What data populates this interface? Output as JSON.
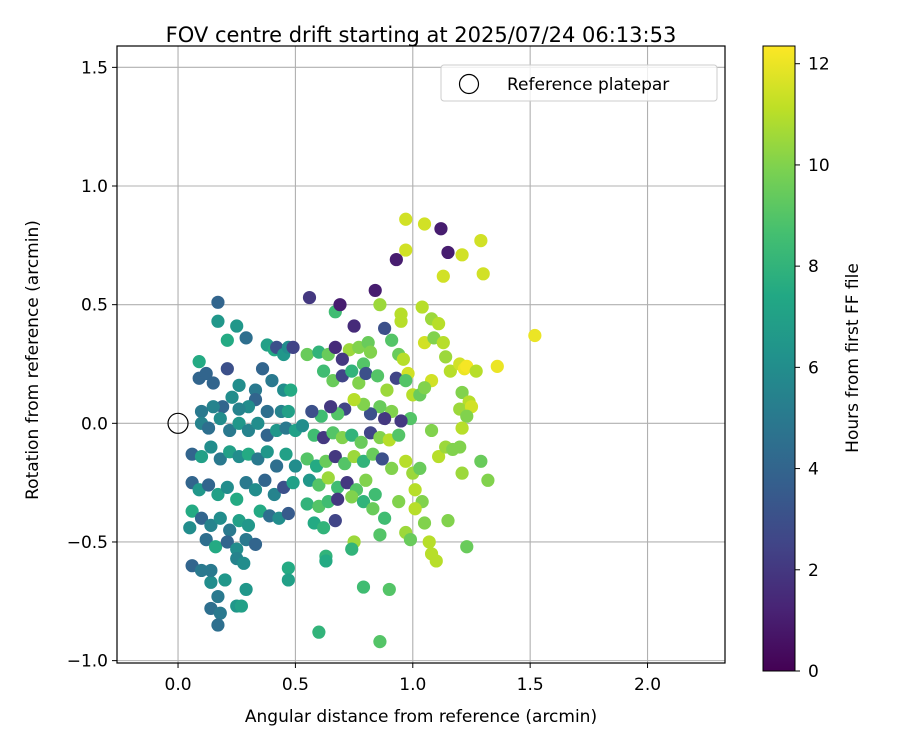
{
  "chart_data": {
    "type": "scatter",
    "title": "FOV centre drift starting at 2025/07/24 06:13:53",
    "xlabel": "Angular distance from reference (arcmin)",
    "ylabel": "Rotation from reference (arcmin)",
    "xlim": [
      -0.26,
      2.33
    ],
    "ylim": [
      -1.01,
      1.59
    ],
    "xticks": [
      0.0,
      0.5,
      1.0,
      1.5,
      2.0
    ],
    "xtick_labels": [
      "0.0",
      "0.5",
      "1.0",
      "1.5",
      "2.0"
    ],
    "yticks": [
      -1.0,
      -0.5,
      0.0,
      0.5,
      1.0,
      1.5
    ],
    "ytick_labels": [
      "−1.0",
      "−0.5",
      "0.0",
      "0.5",
      "1.0",
      "1.5"
    ],
    "grid": true,
    "legend": {
      "position": "top-right",
      "entries": [
        "Reference platepar"
      ]
    },
    "reference_point": {
      "x": 0.0,
      "y": 0.0
    },
    "colorbar": {
      "label": "Hours from first FF file",
      "range": [
        0,
        12.35
      ],
      "ticks": [
        0,
        2,
        4,
        6,
        8,
        10,
        12
      ],
      "tick_labels": [
        "0",
        "2",
        "4",
        "6",
        "8",
        "10",
        "12"
      ],
      "colormap": "viridis"
    },
    "points": [
      {
        "x": 0.17,
        "y": 0.51,
        "c": 4
      },
      {
        "x": 0.17,
        "y": 0.43,
        "c": 6.5
      },
      {
        "x": 0.25,
        "y": 0.41,
        "c": 6.5
      },
      {
        "x": 0.21,
        "y": 0.35,
        "c": 7.5
      },
      {
        "x": 0.29,
        "y": 0.36,
        "c": 4.5
      },
      {
        "x": 0.09,
        "y": 0.26,
        "c": 7.5
      },
      {
        "x": 0.09,
        "y": 0.19,
        "c": 4
      },
      {
        "x": 0.12,
        "y": 0.21,
        "c": 4
      },
      {
        "x": 0.15,
        "y": 0.17,
        "c": 4
      },
      {
        "x": 0.21,
        "y": 0.23,
        "c": 3
      },
      {
        "x": 0.26,
        "y": 0.16,
        "c": 6
      },
      {
        "x": 0.33,
        "y": 0.14,
        "c": 5
      },
      {
        "x": 0.36,
        "y": 0.23,
        "c": 4
      },
      {
        "x": 0.38,
        "y": 0.33,
        "c": 7
      },
      {
        "x": 0.41,
        "y": 0.31,
        "c": 7.5
      },
      {
        "x": 0.42,
        "y": 0.32,
        "c": 3
      },
      {
        "x": 0.45,
        "y": 0.29,
        "c": 6.5
      },
      {
        "x": 0.47,
        "y": 0.32,
        "c": 6
      },
      {
        "x": 0.49,
        "y": 0.32,
        "c": 2.5
      },
      {
        "x": 0.4,
        "y": 0.18,
        "c": 5
      },
      {
        "x": 0.45,
        "y": 0.14,
        "c": 6
      },
      {
        "x": 0.48,
        "y": 0.14,
        "c": 7.5
      },
      {
        "x": 0.44,
        "y": 0.05,
        "c": 5.5
      },
      {
        "x": 0.47,
        "y": 0.05,
        "c": 7
      },
      {
        "x": 0.38,
        "y": 0.05,
        "c": 4.5
      },
      {
        "x": 0.33,
        "y": 0.1,
        "c": 4
      },
      {
        "x": 0.3,
        "y": 0.07,
        "c": 6
      },
      {
        "x": 0.26,
        "y": 0.06,
        "c": 5.5
      },
      {
        "x": 0.23,
        "y": 0.11,
        "c": 6
      },
      {
        "x": 0.19,
        "y": 0.07,
        "c": 4
      },
      {
        "x": 0.15,
        "y": 0.07,
        "c": 5.5
      },
      {
        "x": 0.1,
        "y": 0.05,
        "c": 5
      },
      {
        "x": 0.1,
        "y": 0.0,
        "c": 5.5
      },
      {
        "x": 0.13,
        "y": -0.02,
        "c": 4.5
      },
      {
        "x": 0.18,
        "y": 0.02,
        "c": 6
      },
      {
        "x": 0.22,
        "y": -0.03,
        "c": 5
      },
      {
        "x": 0.26,
        "y": 0.0,
        "c": 6.5
      },
      {
        "x": 0.3,
        "y": -0.03,
        "c": 5.5
      },
      {
        "x": 0.34,
        "y": 0.0,
        "c": 6
      },
      {
        "x": 0.38,
        "y": -0.05,
        "c": 4
      },
      {
        "x": 0.42,
        "y": -0.03,
        "c": 6.5
      },
      {
        "x": 0.46,
        "y": -0.02,
        "c": 5
      },
      {
        "x": 0.5,
        "y": -0.03,
        "c": 7
      },
      {
        "x": 0.53,
        "y": -0.01,
        "c": 6
      },
      {
        "x": 0.06,
        "y": -0.13,
        "c": 4
      },
      {
        "x": 0.1,
        "y": -0.14,
        "c": 7
      },
      {
        "x": 0.14,
        "y": -0.1,
        "c": 6
      },
      {
        "x": 0.18,
        "y": -0.15,
        "c": 5
      },
      {
        "x": 0.22,
        "y": -0.12,
        "c": 7
      },
      {
        "x": 0.26,
        "y": -0.14,
        "c": 6
      },
      {
        "x": 0.3,
        "y": -0.13,
        "c": 7.5
      },
      {
        "x": 0.34,
        "y": -0.15,
        "c": 5
      },
      {
        "x": 0.38,
        "y": -0.12,
        "c": 6.5
      },
      {
        "x": 0.42,
        "y": -0.18,
        "c": 4.5
      },
      {
        "x": 0.46,
        "y": -0.13,
        "c": 7
      },
      {
        "x": 0.5,
        "y": -0.18,
        "c": 6
      },
      {
        "x": 0.06,
        "y": -0.25,
        "c": 4
      },
      {
        "x": 0.09,
        "y": -0.28,
        "c": 6.5
      },
      {
        "x": 0.13,
        "y": -0.26,
        "c": 4
      },
      {
        "x": 0.17,
        "y": -0.3,
        "c": 7
      },
      {
        "x": 0.21,
        "y": -0.27,
        "c": 6
      },
      {
        "x": 0.25,
        "y": -0.32,
        "c": 7.5
      },
      {
        "x": 0.29,
        "y": -0.25,
        "c": 5
      },
      {
        "x": 0.33,
        "y": -0.28,
        "c": 6
      },
      {
        "x": 0.37,
        "y": -0.24,
        "c": 4
      },
      {
        "x": 0.41,
        "y": -0.3,
        "c": 5.5
      },
      {
        "x": 0.45,
        "y": -0.27,
        "c": 3
      },
      {
        "x": 0.49,
        "y": -0.25,
        "c": 7
      },
      {
        "x": 0.06,
        "y": -0.37,
        "c": 7.5
      },
      {
        "x": 0.1,
        "y": -0.4,
        "c": 4
      },
      {
        "x": 0.14,
        "y": -0.43,
        "c": 5.5
      },
      {
        "x": 0.18,
        "y": -0.4,
        "c": 6
      },
      {
        "x": 0.22,
        "y": -0.45,
        "c": 5
      },
      {
        "x": 0.26,
        "y": -0.41,
        "c": 7
      },
      {
        "x": 0.3,
        "y": -0.43,
        "c": 6.5
      },
      {
        "x": 0.35,
        "y": -0.37,
        "c": 7.5
      },
      {
        "x": 0.39,
        "y": -0.39,
        "c": 4.5
      },
      {
        "x": 0.43,
        "y": -0.4,
        "c": 6
      },
      {
        "x": 0.47,
        "y": -0.38,
        "c": 3.5
      },
      {
        "x": 0.05,
        "y": -0.44,
        "c": 6
      },
      {
        "x": 0.12,
        "y": -0.49,
        "c": 4.5
      },
      {
        "x": 0.16,
        "y": -0.52,
        "c": 7.5
      },
      {
        "x": 0.21,
        "y": -0.5,
        "c": 4
      },
      {
        "x": 0.25,
        "y": -0.53,
        "c": 6
      },
      {
        "x": 0.29,
        "y": -0.49,
        "c": 5
      },
      {
        "x": 0.33,
        "y": -0.51,
        "c": 4
      },
      {
        "x": 0.06,
        "y": -0.6,
        "c": 4
      },
      {
        "x": 0.1,
        "y": -0.62,
        "c": 5
      },
      {
        "x": 0.14,
        "y": -0.67,
        "c": 6
      },
      {
        "x": 0.2,
        "y": -0.66,
        "c": 6.5
      },
      {
        "x": 0.25,
        "y": -0.57,
        "c": 5.5
      },
      {
        "x": 0.28,
        "y": -0.59,
        "c": 6
      },
      {
        "x": 0.14,
        "y": -0.62,
        "c": 5
      },
      {
        "x": 0.17,
        "y": -0.73,
        "c": 5
      },
      {
        "x": 0.14,
        "y": -0.78,
        "c": 4.5
      },
      {
        "x": 0.18,
        "y": -0.8,
        "c": 5
      },
      {
        "x": 0.17,
        "y": -0.85,
        "c": 4.5
      },
      {
        "x": 0.25,
        "y": -0.77,
        "c": 6.5
      },
      {
        "x": 0.27,
        "y": -0.77,
        "c": 7
      },
      {
        "x": 0.29,
        "y": -0.7,
        "c": 6.5
      },
      {
        "x": 0.47,
        "y": -0.61,
        "c": 7.5
      },
      {
        "x": 0.47,
        "y": -0.66,
        "c": 7
      },
      {
        "x": 0.56,
        "y": 0.53,
        "c": 2
      },
      {
        "x": 0.55,
        "y": 0.29,
        "c": 9.5
      },
      {
        "x": 0.6,
        "y": 0.3,
        "c": 8
      },
      {
        "x": 0.64,
        "y": 0.29,
        "c": 9.5
      },
      {
        "x": 0.67,
        "y": 0.47,
        "c": 8.5
      },
      {
        "x": 0.69,
        "y": 0.5,
        "c": 1
      },
      {
        "x": 0.75,
        "y": 0.41,
        "c": 1.5
      },
      {
        "x": 0.73,
        "y": 0.31,
        "c": 10.5
      },
      {
        "x": 0.77,
        "y": 0.32,
        "c": 10
      },
      {
        "x": 0.81,
        "y": 0.34,
        "c": 9.5
      },
      {
        "x": 0.84,
        "y": 0.56,
        "c": 1
      },
      {
        "x": 0.86,
        "y": 0.5,
        "c": 10.5
      },
      {
        "x": 0.88,
        "y": 0.4,
        "c": 3
      },
      {
        "x": 0.82,
        "y": 0.3,
        "c": 10
      },
      {
        "x": 0.79,
        "y": 0.25,
        "c": 9
      },
      {
        "x": 0.7,
        "y": 0.27,
        "c": 2
      },
      {
        "x": 0.67,
        "y": 0.32,
        "c": 1.5
      },
      {
        "x": 0.62,
        "y": 0.22,
        "c": 8.5
      },
      {
        "x": 0.66,
        "y": 0.18,
        "c": 9.5
      },
      {
        "x": 0.7,
        "y": 0.2,
        "c": 2.5
      },
      {
        "x": 0.74,
        "y": 0.22,
        "c": 8
      },
      {
        "x": 0.77,
        "y": 0.17,
        "c": 10
      },
      {
        "x": 0.8,
        "y": 0.21,
        "c": 3
      },
      {
        "x": 0.85,
        "y": 0.2,
        "c": 9
      },
      {
        "x": 0.89,
        "y": 0.14,
        "c": 10.5
      },
      {
        "x": 0.93,
        "y": 0.19,
        "c": 2.5
      },
      {
        "x": 0.91,
        "y": 0.35,
        "c": 9
      },
      {
        "x": 0.95,
        "y": 0.46,
        "c": 11
      },
      {
        "x": 0.95,
        "y": 0.43,
        "c": 11
      },
      {
        "x": 0.94,
        "y": 0.29,
        "c": 9.5
      },
      {
        "x": 0.96,
        "y": 0.27,
        "c": 11
      },
      {
        "x": 0.98,
        "y": 0.21,
        "c": 11.5
      },
      {
        "x": 0.97,
        "y": 0.18,
        "c": 9
      },
      {
        "x": 1.0,
        "y": 0.12,
        "c": 11
      },
      {
        "x": 1.03,
        "y": 0.12,
        "c": 9.5
      },
      {
        "x": 0.99,
        "y": 0.02,
        "c": 9
      },
      {
        "x": 0.95,
        "y": 0.01,
        "c": 2
      },
      {
        "x": 0.91,
        "y": 0.05,
        "c": 10
      },
      {
        "x": 0.88,
        "y": 0.02,
        "c": 2
      },
      {
        "x": 0.86,
        "y": 0.07,
        "c": 9.5
      },
      {
        "x": 0.82,
        "y": 0.04,
        "c": 3
      },
      {
        "x": 0.79,
        "y": 0.08,
        "c": 10
      },
      {
        "x": 0.75,
        "y": 0.1,
        "c": 11
      },
      {
        "x": 0.71,
        "y": 0.06,
        "c": 2.5
      },
      {
        "x": 0.68,
        "y": 0.04,
        "c": 9
      },
      {
        "x": 0.65,
        "y": 0.07,
        "c": 2
      },
      {
        "x": 0.61,
        "y": 0.03,
        "c": 8.5
      },
      {
        "x": 0.57,
        "y": 0.05,
        "c": 3
      },
      {
        "x": 0.58,
        "y": -0.05,
        "c": 8.5
      },
      {
        "x": 0.62,
        "y": -0.06,
        "c": 2
      },
      {
        "x": 0.66,
        "y": -0.04,
        "c": 9
      },
      {
        "x": 0.7,
        "y": -0.06,
        "c": 10
      },
      {
        "x": 0.74,
        "y": -0.05,
        "c": 8
      },
      {
        "x": 0.78,
        "y": -0.08,
        "c": 9.5
      },
      {
        "x": 0.82,
        "y": -0.04,
        "c": 2.5
      },
      {
        "x": 0.86,
        "y": -0.06,
        "c": 10
      },
      {
        "x": 0.9,
        "y": -0.07,
        "c": 11
      },
      {
        "x": 0.94,
        "y": -0.05,
        "c": 9
      },
      {
        "x": 0.55,
        "y": -0.15,
        "c": 9
      },
      {
        "x": 0.59,
        "y": -0.18,
        "c": 7.5
      },
      {
        "x": 0.63,
        "y": -0.16,
        "c": 9.5
      },
      {
        "x": 0.67,
        "y": -0.14,
        "c": 2
      },
      {
        "x": 0.71,
        "y": -0.17,
        "c": 9
      },
      {
        "x": 0.75,
        "y": -0.14,
        "c": 10.5
      },
      {
        "x": 0.79,
        "y": -0.16,
        "c": 8
      },
      {
        "x": 0.83,
        "y": -0.13,
        "c": 9.5
      },
      {
        "x": 0.87,
        "y": -0.15,
        "c": 3
      },
      {
        "x": 0.91,
        "y": -0.19,
        "c": 10
      },
      {
        "x": 0.56,
        "y": -0.24,
        "c": 6.5
      },
      {
        "x": 0.6,
        "y": -0.26,
        "c": 9
      },
      {
        "x": 0.64,
        "y": -0.23,
        "c": 10.5
      },
      {
        "x": 0.68,
        "y": -0.27,
        "c": 8.5
      },
      {
        "x": 0.72,
        "y": -0.25,
        "c": 2
      },
      {
        "x": 0.76,
        "y": -0.28,
        "c": 9
      },
      {
        "x": 0.8,
        "y": -0.24,
        "c": 10
      },
      {
        "x": 0.84,
        "y": -0.3,
        "c": 8.5
      },
      {
        "x": 0.55,
        "y": -0.34,
        "c": 8
      },
      {
        "x": 0.6,
        "y": -0.35,
        "c": 9
      },
      {
        "x": 0.64,
        "y": -0.33,
        "c": 8.5
      },
      {
        "x": 0.68,
        "y": -0.32,
        "c": 2
      },
      {
        "x": 0.74,
        "y": -0.31,
        "c": 10
      },
      {
        "x": 0.79,
        "y": -0.33,
        "c": 8
      },
      {
        "x": 0.83,
        "y": -0.36,
        "c": 9.5
      },
      {
        "x": 0.88,
        "y": -0.4,
        "c": 8.5
      },
      {
        "x": 0.58,
        "y": -0.42,
        "c": 7.5
      },
      {
        "x": 0.62,
        "y": -0.44,
        "c": 8
      },
      {
        "x": 0.67,
        "y": -0.41,
        "c": 2.5
      },
      {
        "x": 0.86,
        "y": -0.47,
        "c": 9
      },
      {
        "x": 0.75,
        "y": -0.5,
        "c": 10.5
      },
      {
        "x": 0.74,
        "y": -0.53,
        "c": 8
      },
      {
        "x": 0.63,
        "y": -0.56,
        "c": 8
      },
      {
        "x": 0.63,
        "y": -0.58,
        "c": 7.5
      },
      {
        "x": 0.79,
        "y": -0.69,
        "c": 8.5
      },
      {
        "x": 0.9,
        "y": -0.7,
        "c": 9
      },
      {
        "x": 0.6,
        "y": -0.88,
        "c": 8
      },
      {
        "x": 0.86,
        "y": -0.92,
        "c": 9
      },
      {
        "x": 0.97,
        "y": 0.86,
        "c": 11.5
      },
      {
        "x": 1.05,
        "y": 0.84,
        "c": 11.5
      },
      {
        "x": 1.12,
        "y": 0.82,
        "c": 1
      },
      {
        "x": 0.93,
        "y": 0.69,
        "c": 1
      },
      {
        "x": 0.97,
        "y": 0.73,
        "c": 11.5
      },
      {
        "x": 1.15,
        "y": 0.72,
        "c": 1
      },
      {
        "x": 1.21,
        "y": 0.71,
        "c": 11.5
      },
      {
        "x": 1.29,
        "y": 0.77,
        "c": 11.5
      },
      {
        "x": 1.13,
        "y": 0.62,
        "c": 11.5
      },
      {
        "x": 1.3,
        "y": 0.63,
        "c": 11.5
      },
      {
        "x": 1.04,
        "y": 0.49,
        "c": 11
      },
      {
        "x": 1.08,
        "y": 0.44,
        "c": 10.5
      },
      {
        "x": 1.11,
        "y": 0.42,
        "c": 11
      },
      {
        "x": 1.05,
        "y": 0.34,
        "c": 11.5
      },
      {
        "x": 1.09,
        "y": 0.36,
        "c": 10
      },
      {
        "x": 1.13,
        "y": 0.34,
        "c": 11
      },
      {
        "x": 1.14,
        "y": 0.28,
        "c": 10.5
      },
      {
        "x": 1.16,
        "y": 0.22,
        "c": 11
      },
      {
        "x": 1.2,
        "y": 0.25,
        "c": 11.5
      },
      {
        "x": 1.22,
        "y": 0.23,
        "c": 12
      },
      {
        "x": 1.23,
        "y": 0.24,
        "c": 12.2
      },
      {
        "x": 1.27,
        "y": 0.22,
        "c": 11
      },
      {
        "x": 1.36,
        "y": 0.24,
        "c": 12
      },
      {
        "x": 1.52,
        "y": 0.37,
        "c": 12
      },
      {
        "x": 1.08,
        "y": 0.18,
        "c": 11.5
      },
      {
        "x": 1.05,
        "y": 0.15,
        "c": 10
      },
      {
        "x": 1.21,
        "y": 0.13,
        "c": 10
      },
      {
        "x": 1.24,
        "y": 0.09,
        "c": 11
      },
      {
        "x": 1.2,
        "y": 0.06,
        "c": 10.5
      },
      {
        "x": 1.25,
        "y": 0.07,
        "c": 11.5
      },
      {
        "x": 1.23,
        "y": 0.03,
        "c": 10
      },
      {
        "x": 1.21,
        "y": -0.02,
        "c": 11
      },
      {
        "x": 1.2,
        "y": -0.1,
        "c": 10
      },
      {
        "x": 1.21,
        "y": -0.21,
        "c": 10.5
      },
      {
        "x": 1.29,
        "y": -0.16,
        "c": 9.5
      },
      {
        "x": 1.32,
        "y": -0.24,
        "c": 10
      },
      {
        "x": 1.08,
        "y": -0.03,
        "c": 10
      },
      {
        "x": 1.11,
        "y": -0.14,
        "c": 11
      },
      {
        "x": 1.14,
        "y": -0.1,
        "c": 10.5
      },
      {
        "x": 1.17,
        "y": -0.11,
        "c": 10
      },
      {
        "x": 0.97,
        "y": -0.16,
        "c": 11
      },
      {
        "x": 1.0,
        "y": -0.21,
        "c": 10.5
      },
      {
        "x": 1.03,
        "y": -0.19,
        "c": 9.5
      },
      {
        "x": 1.01,
        "y": -0.28,
        "c": 11
      },
      {
        "x": 1.04,
        "y": -0.33,
        "c": 10
      },
      {
        "x": 1.01,
        "y": -0.36,
        "c": 11
      },
      {
        "x": 0.94,
        "y": -0.33,
        "c": 10
      },
      {
        "x": 1.05,
        "y": -0.42,
        "c": 10
      },
      {
        "x": 1.15,
        "y": -0.41,
        "c": 10
      },
      {
        "x": 0.97,
        "y": -0.46,
        "c": 10.5
      },
      {
        "x": 0.99,
        "y": -0.49,
        "c": 9.5
      },
      {
        "x": 1.07,
        "y": -0.5,
        "c": 11
      },
      {
        "x": 1.08,
        "y": -0.55,
        "c": 11
      },
      {
        "x": 1.1,
        "y": -0.58,
        "c": 11
      },
      {
        "x": 1.23,
        "y": -0.52,
        "c": 9.5
      }
    ]
  }
}
